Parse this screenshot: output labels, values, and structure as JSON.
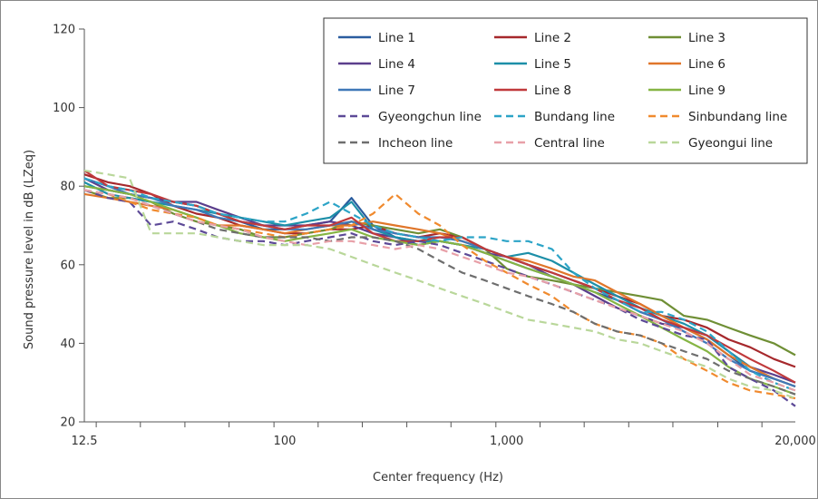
{
  "chart_data": {
    "type": "line",
    "title": "",
    "xlabel": "Center frequency (Hz)",
    "ylabel": "Sound pressure level in dB (LZeq)",
    "x_scale": "log",
    "x": [
      12.5,
      16,
      20,
      25,
      31.5,
      40,
      50,
      63,
      80,
      100,
      125,
      160,
      200,
      250,
      315,
      400,
      500,
      630,
      800,
      1000,
      1250,
      1600,
      2000,
      2500,
      3150,
      4000,
      5000,
      6300,
      8000,
      10000,
      12500,
      16000,
      20000
    ],
    "x_tick_labels": [
      {
        "value": 12.5,
        "label": "12.5"
      },
      {
        "value": 100,
        "label": "100"
      },
      {
        "value": 1000,
        "label": "1,000"
      },
      {
        "value": 20000,
        "label": "20,000"
      }
    ],
    "ylim": [
      20,
      120
    ],
    "y_ticks": [
      20,
      40,
      60,
      80,
      100,
      120
    ],
    "grid": false,
    "legend_position": "top-right",
    "series": [
      {
        "name": "Line 1",
        "color": "#2a5d9f",
        "dash": "solid",
        "values": [
          80,
          79,
          78,
          77,
          76,
          75,
          73,
          71,
          69,
          69,
          70,
          71,
          77,
          70,
          67,
          65,
          66,
          65,
          63,
          61,
          59,
          57,
          55,
          53,
          51,
          48,
          46,
          44,
          41,
          37,
          33,
          31,
          29
        ]
      },
      {
        "name": "Line 2",
        "color": "#a6282c",
        "dash": "solid",
        "values": [
          83,
          81,
          80,
          78,
          75,
          73,
          72,
          70,
          69,
          68,
          68,
          69,
          69,
          70,
          68,
          67,
          68,
          67,
          64,
          62,
          60,
          58,
          56,
          54,
          52,
          50,
          47,
          46,
          44,
          41,
          39,
          36,
          34
        ]
      },
      {
        "name": "Line 3",
        "color": "#6f8f35",
        "dash": "solid",
        "values": [
          79,
          77,
          77,
          76,
          73,
          71,
          70,
          69,
          67,
          67,
          68,
          69,
          71,
          70,
          69,
          68,
          69,
          67,
          64,
          59,
          57,
          56,
          55,
          54,
          53,
          52,
          51,
          47,
          46,
          44,
          42,
          40,
          37
        ]
      },
      {
        "name": "Line 4",
        "color": "#5b3e8c",
        "dash": "solid",
        "values": [
          82,
          79,
          78,
          77,
          76,
          76,
          74,
          72,
          70,
          70,
          70,
          71,
          70,
          68,
          67,
          66,
          66,
          65,
          63,
          62,
          60,
          57,
          55,
          52,
          49,
          47,
          45,
          44,
          42,
          38,
          34,
          32,
          30
        ]
      },
      {
        "name": "Line 5",
        "color": "#1d8fa8",
        "dash": "solid",
        "values": [
          81,
          78,
          77,
          76,
          75,
          74,
          73,
          72,
          71,
          70,
          71,
          72,
          76,
          69,
          67,
          66,
          66,
          65,
          64,
          62,
          63,
          61,
          58,
          55,
          52,
          49,
          47,
          45,
          42,
          38,
          34,
          31,
          29
        ]
      },
      {
        "name": "Line 6",
        "color": "#e0762a",
        "dash": "solid",
        "values": [
          78,
          77,
          76,
          75,
          74,
          72,
          70,
          70,
          69,
          68,
          69,
          70,
          70,
          71,
          70,
          69,
          68,
          66,
          64,
          62,
          61,
          59,
          57,
          56,
          53,
          50,
          47,
          44,
          41,
          37,
          34,
          31,
          29
        ]
      },
      {
        "name": "Line 7",
        "color": "#3f78b8",
        "dash": "solid",
        "values": [
          82,
          80,
          78,
          77,
          75,
          74,
          72,
          71,
          70,
          69,
          69,
          70,
          71,
          69,
          68,
          67,
          67,
          66,
          64,
          62,
          60,
          58,
          56,
          54,
          51,
          48,
          46,
          43,
          40,
          36,
          33,
          31,
          29
        ]
      },
      {
        "name": "Line 8",
        "color": "#c0393b",
        "dash": "solid",
        "values": [
          84,
          80,
          79,
          78,
          76,
          75,
          73,
          71,
          70,
          69,
          70,
          70,
          72,
          68,
          66,
          66,
          67,
          67,
          64,
          62,
          60,
          58,
          56,
          54,
          51,
          49,
          46,
          44,
          42,
          39,
          36,
          33,
          30
        ]
      },
      {
        "name": "Line 9",
        "color": "#86b544",
        "dash": "solid",
        "values": [
          80,
          79,
          78,
          76,
          74,
          72,
          70,
          68,
          67,
          66,
          67,
          68,
          69,
          67,
          66,
          65,
          66,
          65,
          63,
          61,
          59,
          57,
          55,
          53,
          50,
          47,
          44,
          41,
          38,
          34,
          31,
          29,
          27
        ]
      },
      {
        "name": "Gyeongchun line",
        "color": "#5d4a97",
        "dash": "dashed",
        "values": [
          79,
          77,
          76,
          70,
          71,
          69,
          67,
          66,
          66,
          65,
          66,
          67,
          68,
          66,
          65,
          66,
          65,
          63,
          61,
          59,
          57,
          55,
          53,
          51,
          49,
          46,
          44,
          42,
          41,
          34,
          31,
          28,
          24
        ]
      },
      {
        "name": "Bundang line",
        "color": "#2ca4c7",
        "dash": "dashed",
        "values": [
          82,
          80,
          79,
          77,
          76,
          75,
          73,
          72,
          71,
          71,
          73,
          76,
          73,
          70,
          68,
          67,
          66,
          67,
          67,
          66,
          66,
          64,
          58,
          54,
          51,
          48,
          48,
          46,
          43,
          38,
          33,
          30,
          28
        ]
      },
      {
        "name": "Sinbundang line",
        "color": "#f08a2e",
        "dash": "dashed",
        "values": [
          79,
          78,
          76,
          74,
          73,
          72,
          70,
          69,
          68,
          67,
          68,
          69,
          70,
          73,
          78,
          73,
          70,
          65,
          61,
          58,
          55,
          52,
          48,
          45,
          43,
          42,
          40,
          36,
          33,
          30,
          28,
          27,
          26
        ]
      },
      {
        "name": "Incheon line",
        "color": "#6e6e6e",
        "dash": "dashed",
        "values": [
          79,
          78,
          77,
          75,
          73,
          71,
          69,
          68,
          67,
          67,
          67,
          66,
          67,
          67,
          66,
          64,
          61,
          58,
          56,
          54,
          52,
          50,
          48,
          45,
          43,
          42,
          40,
          38,
          36,
          33,
          31,
          29,
          27
        ]
      },
      {
        "name": "Central line",
        "color": "#e8a0a8",
        "dash": "dashed",
        "values": [
          79,
          78,
          77,
          75,
          73,
          71,
          70,
          69,
          67,
          66,
          65,
          66,
          66,
          65,
          64,
          65,
          64,
          62,
          60,
          58,
          57,
          55,
          53,
          51,
          49,
          47,
          45,
          43,
          40,
          36,
          32,
          30,
          28
        ]
      },
      {
        "name": "Gyeongui line",
        "color": "#b9d79a",
        "dash": "dashed",
        "values": [
          84,
          83,
          82,
          68,
          68,
          68,
          67,
          66,
          65,
          65,
          65,
          64,
          62,
          60,
          58,
          56,
          54,
          52,
          50,
          48,
          46,
          45,
          44,
          43,
          41,
          40,
          38,
          36,
          34,
          31,
          29,
          28,
          26
        ]
      }
    ]
  }
}
